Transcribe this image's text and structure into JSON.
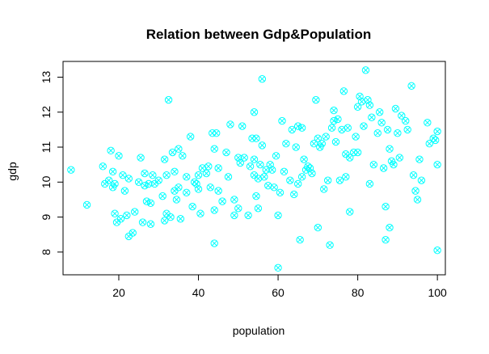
{
  "chart_data": {
    "type": "scatter",
    "title": "Relation between Gdp&Population",
    "xlabel": "population",
    "ylabel": "gdp",
    "xlim": [
      6,
      102
    ],
    "ylim": [
      7.35,
      13.45
    ],
    "xticks": [
      20,
      40,
      60,
      80,
      100
    ],
    "yticks": [
      8,
      9,
      10,
      11,
      12,
      13
    ],
    "grid": false,
    "marker": "circle-x",
    "color": "#00FFFF",
    "points": [
      [
        8.0,
        10.35
      ],
      [
        12.0,
        9.35
      ],
      [
        16.0,
        10.45
      ],
      [
        16.5,
        9.95
      ],
      [
        17.5,
        10.05
      ],
      [
        18.0,
        10.9
      ],
      [
        18.5,
        10.3
      ],
      [
        18.5,
        9.85
      ],
      [
        19.0,
        9.95
      ],
      [
        19.0,
        9.1
      ],
      [
        19.5,
        8.85
      ],
      [
        20.0,
        10.75
      ],
      [
        20.5,
        8.95
      ],
      [
        21.0,
        10.2
      ],
      [
        21.5,
        9.75
      ],
      [
        22.0,
        9.05
      ],
      [
        22.5,
        10.1
      ],
      [
        22.5,
        8.45
      ],
      [
        23.5,
        8.55
      ],
      [
        24.0,
        9.15
      ],
      [
        25.0,
        10.0
      ],
      [
        25.5,
        10.7
      ],
      [
        26.0,
        8.85
      ],
      [
        26.5,
        10.25
      ],
      [
        26.5,
        9.9
      ],
      [
        27.0,
        9.45
      ],
      [
        27.5,
        9.95
      ],
      [
        28.0,
        9.4
      ],
      [
        28.0,
        8.8
      ],
      [
        28.5,
        10.2
      ],
      [
        29.0,
        9.95
      ],
      [
        30.0,
        10.05
      ],
      [
        31.0,
        9.6
      ],
      [
        31.5,
        10.65
      ],
      [
        31.5,
        8.9
      ],
      [
        32.0,
        10.2
      ],
      [
        32.0,
        9.1
      ],
      [
        32.5,
        12.35
      ],
      [
        33.0,
        9.0
      ],
      [
        33.5,
        10.85
      ],
      [
        34.0,
        10.3
      ],
      [
        34.0,
        9.75
      ],
      [
        34.5,
        9.5
      ],
      [
        35.0,
        10.95
      ],
      [
        35.0,
        9.85
      ],
      [
        35.5,
        8.95
      ],
      [
        36.0,
        10.75
      ],
      [
        37.0,
        10.15
      ],
      [
        37.0,
        9.7
      ],
      [
        38.0,
        11.3
      ],
      [
        38.5,
        9.3
      ],
      [
        39.0,
        10.0
      ],
      [
        39.5,
        9.95
      ],
      [
        40.0,
        10.2
      ],
      [
        40.0,
        9.8
      ],
      [
        40.5,
        9.1
      ],
      [
        41.0,
        10.4
      ],
      [
        42.0,
        10.25
      ],
      [
        42.5,
        10.45
      ],
      [
        43.0,
        9.85
      ],
      [
        43.5,
        11.4
      ],
      [
        44.0,
        10.95
      ],
      [
        44.0,
        9.2
      ],
      [
        44.0,
        8.25
      ],
      [
        44.5,
        11.4
      ],
      [
        45.0,
        10.4
      ],
      [
        45.0,
        9.75
      ],
      [
        46.0,
        9.45
      ],
      [
        47.0,
        10.85
      ],
      [
        47.5,
        10.15
      ],
      [
        48.0,
        11.65
      ],
      [
        49.0,
        9.5
      ],
      [
        49.0,
        9.05
      ],
      [
        50.0,
        9.25
      ],
      [
        50.0,
        10.7
      ],
      [
        50.5,
        10.55
      ],
      [
        51.0,
        11.6
      ],
      [
        51.5,
        10.7
      ],
      [
        52.5,
        9.05
      ],
      [
        53.0,
        10.45
      ],
      [
        53.5,
        11.25
      ],
      [
        54.0,
        10.65
      ],
      [
        54.0,
        10.2
      ],
      [
        54.0,
        12.0
      ],
      [
        54.5,
        11.25
      ],
      [
        54.5,
        9.6
      ],
      [
        55.0,
        10.1
      ],
      [
        55.0,
        9.25
      ],
      [
        55.5,
        10.5
      ],
      [
        56.0,
        11.05
      ],
      [
        56.0,
        12.95
      ],
      [
        56.5,
        10.15
      ],
      [
        57.0,
        10.35
      ],
      [
        57.5,
        9.9
      ],
      [
        58.0,
        10.5
      ],
      [
        58.5,
        10.35
      ],
      [
        59.0,
        9.85
      ],
      [
        59.5,
        10.75
      ],
      [
        60.0,
        7.55
      ],
      [
        60.0,
        9.05
      ],
      [
        60.5,
        9.7
      ],
      [
        61.0,
        11.75
      ],
      [
        61.5,
        10.3
      ],
      [
        62.0,
        11.1
      ],
      [
        63.0,
        10.05
      ],
      [
        63.5,
        11.5
      ],
      [
        64.0,
        9.65
      ],
      [
        64.5,
        11.0
      ],
      [
        65.0,
        11.6
      ],
      [
        65.0,
        9.95
      ],
      [
        65.5,
        8.35
      ],
      [
        66.0,
        11.55
      ],
      [
        66.0,
        10.15
      ],
      [
        66.5,
        10.65
      ],
      [
        67.0,
        10.35
      ],
      [
        67.5,
        10.45
      ],
      [
        68.0,
        10.4
      ],
      [
        68.5,
        10.25
      ],
      [
        69.0,
        11.1
      ],
      [
        69.5,
        12.35
      ],
      [
        70.0,
        11.25
      ],
      [
        70.0,
        8.7
      ],
      [
        70.5,
        11.0
      ],
      [
        71.0,
        11.1
      ],
      [
        71.5,
        9.8
      ],
      [
        72.0,
        11.3
      ],
      [
        72.5,
        10.05
      ],
      [
        73.0,
        8.2
      ],
      [
        73.5,
        11.55
      ],
      [
        74.0,
        12.05
      ],
      [
        74.0,
        11.75
      ],
      [
        74.5,
        11.15
      ],
      [
        75.0,
        11.8
      ],
      [
        75.5,
        10.05
      ],
      [
        76.0,
        11.5
      ],
      [
        76.5,
        12.6
      ],
      [
        77.0,
        10.8
      ],
      [
        77.0,
        10.15
      ],
      [
        77.5,
        11.55
      ],
      [
        78.0,
        10.7
      ],
      [
        78.0,
        9.15
      ],
      [
        79.0,
        10.85
      ],
      [
        79.5,
        11.3
      ],
      [
        80.0,
        12.15
      ],
      [
        80.0,
        10.85
      ],
      [
        80.5,
        12.45
      ],
      [
        81.0,
        12.3
      ],
      [
        81.5,
        11.6
      ],
      [
        82.0,
        13.2
      ],
      [
        82.5,
        12.35
      ],
      [
        83.0,
        9.95
      ],
      [
        83.0,
        12.2
      ],
      [
        83.5,
        11.85
      ],
      [
        84.0,
        10.5
      ],
      [
        85.0,
        11.4
      ],
      [
        85.5,
        12.0
      ],
      [
        86.0,
        11.7
      ],
      [
        86.5,
        10.4
      ],
      [
        87.0,
        9.3
      ],
      [
        87.0,
        8.35
      ],
      [
        87.5,
        11.5
      ],
      [
        88.0,
        10.95
      ],
      [
        88.0,
        8.7
      ],
      [
        88.5,
        10.6
      ],
      [
        89.0,
        10.5
      ],
      [
        89.5,
        12.1
      ],
      [
        90.0,
        11.4
      ],
      [
        90.5,
        10.7
      ],
      [
        91.0,
        11.9
      ],
      [
        92.0,
        11.75
      ],
      [
        92.5,
        11.5
      ],
      [
        93.5,
        12.75
      ],
      [
        94.0,
        10.2
      ],
      [
        94.5,
        9.75
      ],
      [
        95.0,
        9.5
      ],
      [
        95.5,
        10.65
      ],
      [
        96.0,
        10.05
      ],
      [
        97.5,
        11.7
      ],
      [
        98.0,
        11.1
      ],
      [
        99.0,
        11.25
      ],
      [
        99.5,
        11.2
      ],
      [
        100.0,
        8.05
      ],
      [
        100.0,
        10.5
      ],
      [
        100.0,
        11.45
      ]
    ]
  }
}
